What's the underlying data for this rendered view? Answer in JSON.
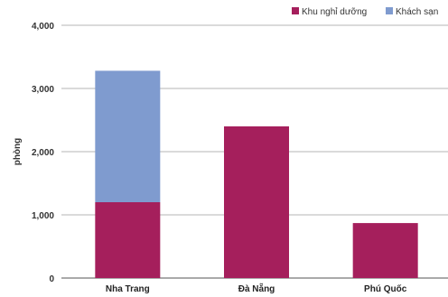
{
  "chart_data": {
    "type": "bar",
    "stacked": true,
    "categories": [
      "Nha Trang",
      "Đà Nẵng",
      "Phú Quốc"
    ],
    "series": [
      {
        "name": "Khu nghỉ dưỡng",
        "color": "#a51f5c",
        "values": [
          1200,
          2400,
          870
        ]
      },
      {
        "name": "Khách sạn",
        "color": "#7f9bcf",
        "values": [
          2080,
          0,
          0
        ]
      }
    ],
    "ylabel": "phòng",
    "xlabel": "",
    "ylim": [
      0,
      4000
    ],
    "yticks": [
      0,
      1000,
      2000,
      3000,
      4000
    ],
    "ytick_labels": [
      "0",
      "1,000",
      "2,000",
      "3,000",
      "4,000"
    ],
    "grid": true,
    "legend": "top-right"
  }
}
